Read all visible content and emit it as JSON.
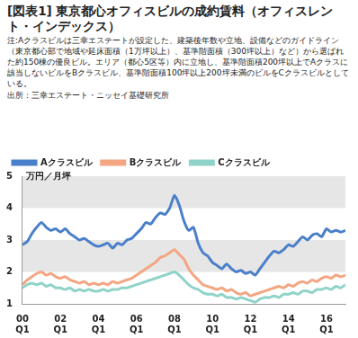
{
  "chart_data": {
    "type": "line",
    "title": "[図表1] 東京都心オフィスビルの成約賃料（オフィスレント・インデックス）",
    "annotations": [
      "注:Aクラスビルは三幸エステートが設定した、建築後年数や立地、設備などのガイドライン（東京都心部で地域や延床面積（1万坪以上）、基準階面積（300坪以上）など）から選ばれた約150棟の優良ビル。エリア（都心5区等）内に立地し、基準階面積200坪以上でAクラスに該当しないビルをBクラスビル、基準階面積100坪以上200坪未満のビルをCクラスビルとしている。",
      "出所：三幸エステート・ニッセイ基礎研究所"
    ],
    "y_label": "万円／月坪",
    "categories": [
      "00 Q1",
      null,
      null,
      null,
      null,
      null,
      null,
      null,
      "02 Q1",
      null,
      null,
      null,
      null,
      null,
      null,
      null,
      "04 Q1",
      null,
      null,
      null,
      null,
      null,
      null,
      null,
      "06 Q1",
      null,
      null,
      null,
      null,
      null,
      null,
      null,
      "08 Q1",
      null,
      null,
      null,
      null,
      null,
      null,
      null,
      "10 Q1",
      null,
      null,
      null,
      null,
      null,
      null,
      null,
      "12 Q1",
      null,
      null,
      null,
      null,
      null,
      null,
      null,
      "14 Q1",
      null,
      null,
      null,
      null,
      null,
      null,
      null,
      "16 Q1",
      null,
      null,
      null,
      null
    ],
    "series": [
      {
        "name": "Aクラスビル",
        "color": "#4a7fc9",
        "values": [
          2.85,
          2.95,
          3.2,
          3.4,
          3.55,
          3.4,
          3.3,
          3.35,
          3.25,
          3.35,
          3.2,
          3.1,
          3.0,
          3.05,
          2.95,
          2.85,
          2.8,
          2.85,
          2.9,
          2.75,
          2.9,
          2.85,
          3.0,
          3.05,
          3.2,
          3.35,
          3.55,
          3.5,
          3.7,
          3.85,
          3.8,
          4.0,
          4.4,
          4.1,
          3.6,
          3.3,
          3.4,
          2.9,
          2.6,
          2.5,
          2.3,
          2.2,
          2.1,
          2.25,
          2.1,
          2.0,
          2.05,
          1.95,
          2.0,
          1.9,
          2.1,
          2.3,
          2.5,
          2.65,
          2.6,
          2.7,
          2.85,
          2.8,
          2.95,
          3.1,
          3.0,
          3.15,
          3.2,
          3.1,
          3.35,
          3.25,
          3.3,
          3.25,
          3.3
        ]
      },
      {
        "name": "Bクラスビル",
        "color": "#f4a582",
        "values": [
          1.6,
          1.75,
          1.85,
          1.95,
          2.0,
          1.9,
          1.95,
          1.85,
          1.8,
          1.85,
          1.75,
          1.7,
          1.65,
          1.7,
          1.6,
          1.65,
          1.6,
          1.65,
          1.6,
          1.7,
          1.65,
          1.7,
          1.75,
          1.8,
          1.9,
          2.0,
          2.1,
          2.2,
          2.3,
          2.45,
          2.5,
          2.6,
          2.7,
          2.55,
          2.4,
          2.1,
          1.9,
          1.75,
          1.6,
          1.55,
          1.5,
          1.45,
          1.5,
          1.4,
          1.45,
          1.35,
          1.3,
          1.35,
          1.25,
          1.3,
          1.35,
          1.4,
          1.45,
          1.5,
          1.55,
          1.5,
          1.6,
          1.55,
          1.65,
          1.7,
          1.65,
          1.75,
          1.7,
          1.8,
          1.85,
          1.8,
          1.9,
          1.85,
          1.9
        ]
      },
      {
        "name": "Cクラスビル",
        "color": "#8fd3c8",
        "values": [
          1.5,
          1.6,
          1.65,
          1.6,
          1.65,
          1.55,
          1.6,
          1.5,
          1.5,
          1.45,
          1.5,
          1.4,
          1.45,
          1.4,
          1.45,
          1.4,
          1.4,
          1.45,
          1.4,
          1.45,
          1.45,
          1.5,
          1.5,
          1.55,
          1.6,
          1.65,
          1.7,
          1.75,
          1.8,
          1.85,
          1.9,
          1.95,
          2.0,
          1.9,
          1.75,
          1.6,
          1.5,
          1.45,
          1.35,
          1.3,
          1.3,
          1.25,
          1.3,
          1.2,
          1.2,
          1.15,
          1.2,
          1.15,
          1.1,
          1.05,
          1.15,
          1.2,
          1.2,
          1.25,
          1.2,
          1.3,
          1.3,
          1.35,
          1.3,
          1.4,
          1.4,
          1.35,
          1.45,
          1.45,
          1.5,
          1.45,
          1.55,
          1.5,
          1.6
        ]
      }
    ],
    "ylim": [
      1,
      5
    ],
    "yticks": [
      1,
      2,
      3,
      4,
      5
    ],
    "grid": true,
    "legend": "top-left"
  }
}
